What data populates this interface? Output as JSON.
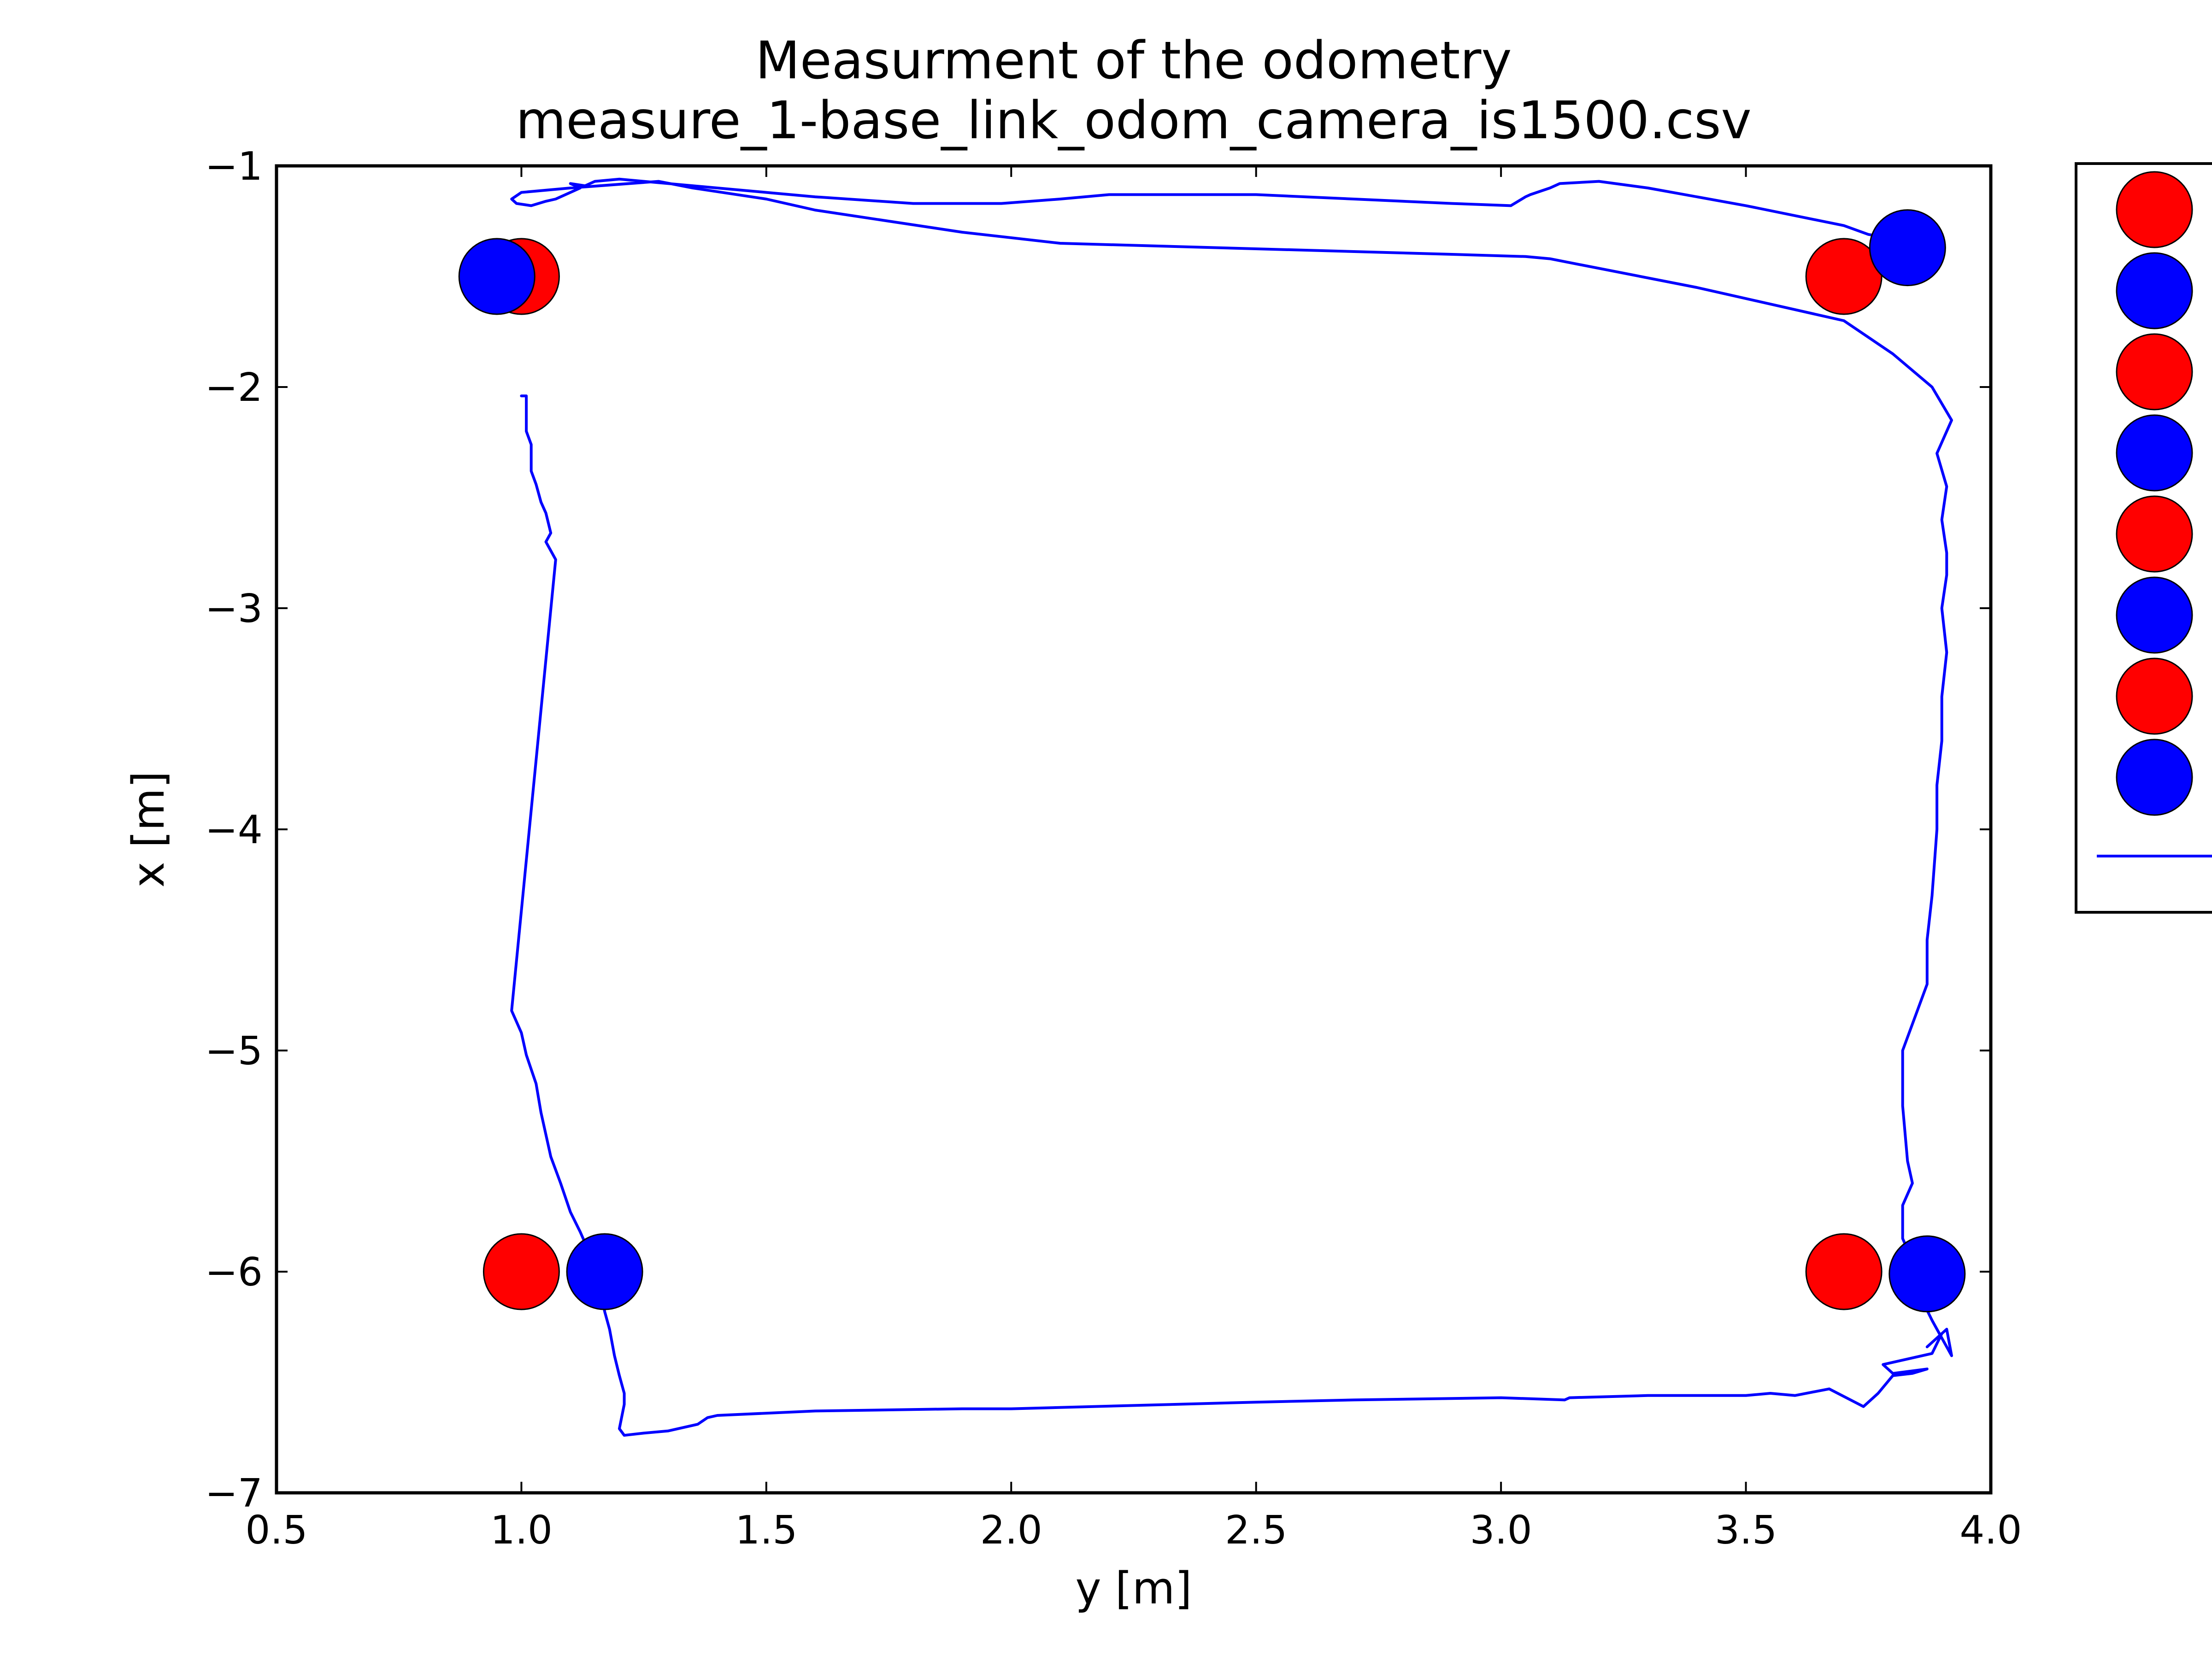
{
  "chart_data": {
    "type": "scatter",
    "title": "Measurment of the odometry",
    "subtitle": "measure_1-base_link_odom_camera_is1500.csv",
    "xlabel": "y [m]",
    "ylabel": "x [m]",
    "xlim": [
      0.5,
      4.0
    ],
    "ylim": [
      -7,
      -1
    ],
    "xticks": [
      0.5,
      1.0,
      1.5,
      2.0,
      2.5,
      3.0,
      3.5,
      4.0
    ],
    "xtick_labels": [
      "0.5",
      "1.0",
      "1.5",
      "2.0",
      "2.5",
      "3.0",
      "3.5",
      "4.0"
    ],
    "yticks": [
      -1,
      -2,
      -3,
      -4,
      -5,
      -6,
      -7
    ],
    "ytick_labels": [
      "−1",
      "−2",
      "−3",
      "−4",
      "−5",
      "−6",
      "−7"
    ],
    "grid": false,
    "legend_placement": "right-outside-top",
    "colors": {
      "red": "#ff0000",
      "blue": "#0000ff",
      "line": "#0000ff"
    },
    "markers": [
      {
        "color": "red",
        "x": 1.0,
        "y": -1.5
      },
      {
        "color": "blue",
        "x": 0.95,
        "y": -1.5
      },
      {
        "color": "red",
        "x": 3.7,
        "y": -1.5
      },
      {
        "color": "blue",
        "x": 3.83,
        "y": -1.37
      },
      {
        "color": "red",
        "x": 1.0,
        "y": -6.0
      },
      {
        "color": "blue",
        "x": 1.17,
        "y": -6.0
      },
      {
        "color": "red",
        "x": 3.7,
        "y": -6.0
      },
      {
        "color": "blue",
        "x": 3.87,
        "y": -6.01
      }
    ],
    "legend_markers": [
      "red",
      "blue",
      "red",
      "blue",
      "red",
      "blue",
      "red",
      "blue"
    ],
    "path": {
      "x": [
        1.0,
        1.01,
        1.01,
        1.02,
        1.02,
        1.03,
        1.04,
        1.05,
        1.06,
        1.05,
        1.07,
        0.98,
        1.0,
        1.01,
        1.03,
        1.04,
        1.06,
        1.08,
        1.1,
        1.12,
        1.14,
        1.16,
        1.17,
        1.18,
        1.19,
        1.2,
        1.21,
        1.21,
        1.2,
        1.21,
        1.25,
        1.3,
        1.36,
        1.38,
        1.4,
        1.6,
        1.9,
        2.0,
        2.5,
        2.7,
        3.0,
        3.13,
        3.14,
        3.3,
        3.5,
        3.55,
        3.6,
        3.67,
        3.74,
        3.77,
        3.8,
        3.84,
        3.87,
        3.8,
        3.78,
        3.88,
        3.9,
        3.87,
        3.91,
        3.92,
        3.9,
        3.88,
        3.86,
        3.84,
        3.84,
        3.82,
        3.82,
        3.84,
        3.83,
        3.82,
        3.82,
        3.85,
        3.87,
        3.87,
        3.88,
        3.89,
        3.89,
        3.9,
        3.9,
        3.91,
        3.9,
        3.91,
        3.91,
        3.9,
        3.91,
        3.89,
        3.92,
        3.88,
        3.8,
        3.7,
        3.4,
        3.1,
        3.05,
        2.9,
        2.1,
        1.9,
        1.75,
        1.6,
        1.5,
        1.35,
        1.28,
        1.1,
        1.0,
        0.98,
        0.99,
        1.02,
        1.05,
        1.07,
        1.1,
        1.12,
        1.1,
        1.13,
        1.15,
        1.2,
        1.25,
        1.3,
        1.4,
        1.5,
        1.6,
        1.8,
        1.98,
        2.1,
        2.2,
        2.5,
        2.7,
        2.9,
        3.02,
        3.05,
        3.06,
        3.1,
        3.12,
        3.2,
        3.3,
        3.5,
        3.7,
        3.75,
        3.8,
        3.82
      ],
      "y": [
        -2.04,
        -2.04,
        -2.2,
        -2.26,
        -2.38,
        -2.44,
        -2.52,
        -2.57,
        -2.66,
        -2.7,
        -2.78,
        -4.82,
        -4.92,
        -5.02,
        -5.15,
        -5.28,
        -5.48,
        -5.6,
        -5.73,
        -5.82,
        -5.92,
        -6.05,
        -6.18,
        -6.26,
        -6.38,
        -6.47,
        -6.55,
        -6.6,
        -6.71,
        -6.74,
        -6.73,
        -6.72,
        -6.69,
        -6.66,
        -6.65,
        -6.63,
        -6.62,
        -6.62,
        -6.59,
        -6.58,
        -6.57,
        -6.58,
        -6.57,
        -6.56,
        -6.56,
        -6.55,
        -6.56,
        -6.53,
        -6.61,
        -6.55,
        -6.47,
        -6.46,
        -6.44,
        -6.46,
        -6.42,
        -6.37,
        -6.28,
        -6.34,
        -6.26,
        -6.38,
        -6.3,
        -6.22,
        -6.13,
        -6.02,
        -5.95,
        -5.85,
        -5.7,
        -5.6,
        -5.5,
        -5.25,
        -5.0,
        -4.82,
        -4.7,
        -4.5,
        -4.3,
        -4.0,
        -3.8,
        -3.6,
        -3.4,
        -3.2,
        -3.0,
        -2.85,
        -2.75,
        -2.6,
        -2.45,
        -2.3,
        -2.15,
        -2.0,
        -1.85,
        -1.7,
        -1.55,
        -1.42,
        -1.41,
        -1.4,
        -1.35,
        -1.3,
        -1.25,
        -1.2,
        -1.15,
        -1.1,
        -1.07,
        -1.1,
        -1.12,
        -1.15,
        -1.17,
        -1.18,
        -1.16,
        -1.15,
        -1.12,
        -1.1,
        -1.08,
        -1.09,
        -1.07,
        -1.06,
        -1.07,
        -1.08,
        -1.1,
        -1.12,
        -1.14,
        -1.17,
        -1.17,
        -1.15,
        -1.13,
        -1.13,
        -1.15,
        -1.17,
        -1.18,
        -1.14,
        -1.13,
        -1.1,
        -1.08,
        -1.07,
        -1.1,
        -1.18,
        -1.27,
        -1.31,
        -1.33,
        -1.37
      ]
    }
  }
}
